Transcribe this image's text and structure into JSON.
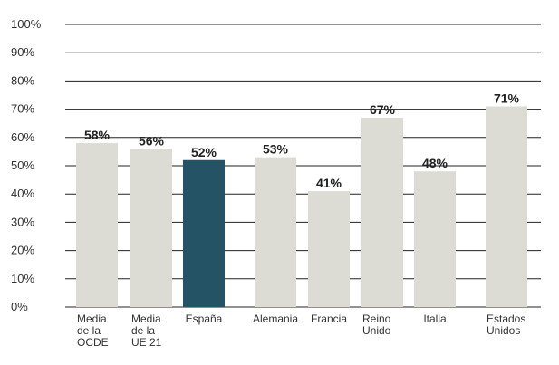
{
  "chart_data": {
    "type": "bar",
    "categories": [
      [
        "Media",
        "de la",
        "OCDE"
      ],
      [
        "Media",
        "de la",
        "UE 21"
      ],
      [
        "España"
      ],
      [
        "Alemania"
      ],
      [
        "Francia"
      ],
      [
        "Reino",
        "Unido"
      ],
      [
        "Italia"
      ],
      [
        "Estados",
        "Unidos"
      ]
    ],
    "values": [
      58,
      56,
      52,
      53,
      41,
      67,
      48,
      71
    ],
    "value_labels": [
      "58%",
      "56%",
      "52%",
      "53%",
      "41%",
      "67%",
      "48%",
      "71%"
    ],
    "highlight_index": 2,
    "ylim": [
      0,
      100
    ],
    "yticks": [
      "0%",
      "10%",
      "20%",
      "30%",
      "40%",
      "50%",
      "60%",
      "70%",
      "80%",
      "90%",
      "100%"
    ],
    "grid": true,
    "colors": {
      "bar": "#dcdcd4",
      "highlight": "#245366",
      "grid": "#222222"
    }
  }
}
